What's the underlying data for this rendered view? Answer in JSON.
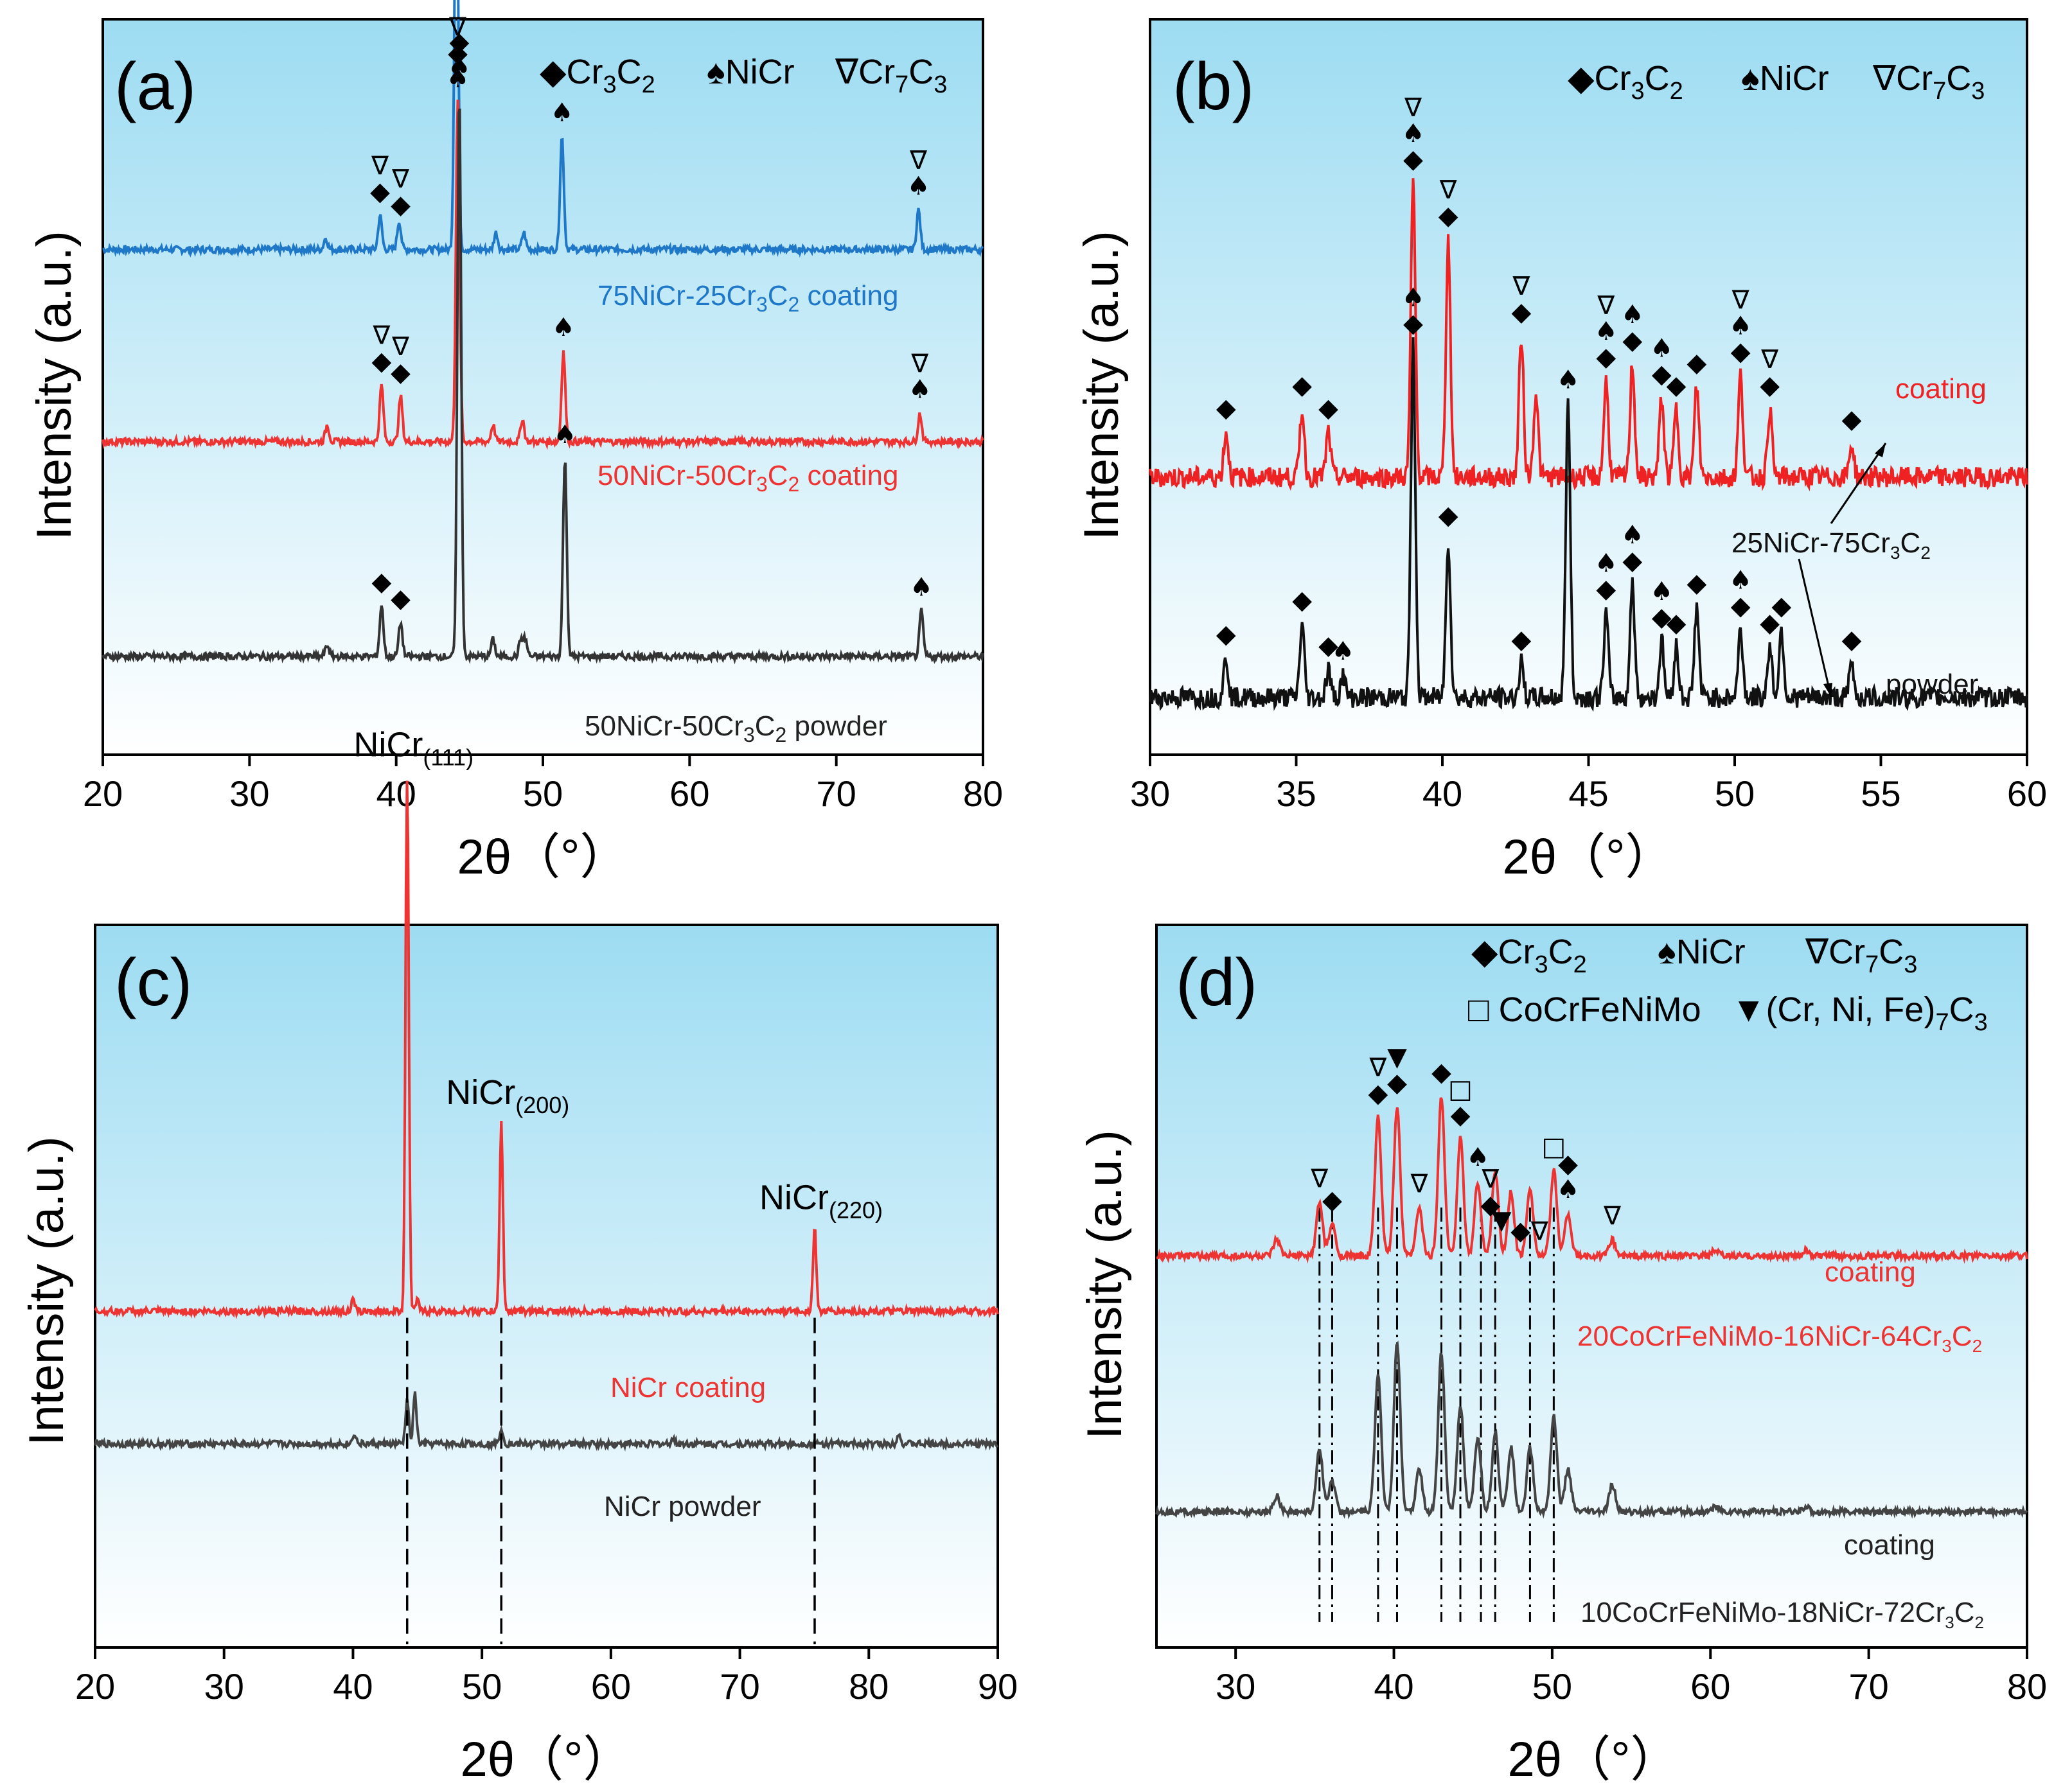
{
  "chart_data": [
    {
      "type": "line",
      "panel": "(a)",
      "xlabel": "2θ（°）",
      "ylabel": "Intensity (a.u.)",
      "xlim": [
        20,
        80
      ],
      "xticks": [
        "20",
        "30",
        "40",
        "50",
        "60",
        "70",
        "80"
      ],
      "legend": [
        {
          "symbol": "diamond",
          "text": "Cr3C2"
        },
        {
          "symbol": "spade",
          "text": "NiCr"
        },
        {
          "symbol": "nabla",
          "text": "Cr7C3"
        }
      ],
      "series": [
        {
          "name": "75NiCr-25Cr3C2 coating",
          "color": "#1f77c8",
          "baseline": 0.82,
          "peaks": [
            [
              38.9,
              0.06
            ],
            [
              40.2,
              0.05
            ],
            [
              44.1,
              0.74
            ],
            [
              51.3,
              0.2
            ],
            [
              75.6,
              0.07
            ],
            [
              35.2,
              0.02
            ],
            [
              46.8,
              0.03
            ],
            [
              48.7,
              0.03
            ]
          ],
          "markers": [
            [
              38.9,
              "◆∇"
            ],
            [
              40.3,
              "◆∇"
            ],
            [
              44.1,
              "♠◆∇"
            ],
            [
              51.3,
              "♠"
            ],
            [
              75.6,
              "♠∇"
            ]
          ]
        },
        {
          "name": "50NiCr-50Cr3C2 coating",
          "color": "#ee3333",
          "baseline": 0.48,
          "peaks": [
            [
              39.0,
              0.1
            ],
            [
              40.3,
              0.08
            ],
            [
              44.2,
              0.6
            ],
            [
              51.4,
              0.16
            ],
            [
              75.7,
              0.05
            ],
            [
              35.3,
              0.03
            ],
            [
              46.6,
              0.03
            ],
            [
              48.6,
              0.04
            ]
          ],
          "markers": [
            [
              39.0,
              "◆∇"
            ],
            [
              40.3,
              "◆∇"
            ],
            [
              44.2,
              "♠◆∇"
            ],
            [
              51.4,
              "♠"
            ],
            [
              75.7,
              "♠∇"
            ]
          ]
        },
        {
          "name": "50NiCr-50Cr3C2 powder",
          "color": "#333333",
          "baseline": 0.1,
          "peaks": [
            [
              39.0,
              0.09
            ],
            [
              40.3,
              0.06
            ],
            [
              44.3,
              1.0
            ],
            [
              51.5,
              0.35
            ],
            [
              75.8,
              0.08
            ],
            [
              35.3,
              0.02
            ],
            [
              46.6,
              0.03
            ],
            [
              48.5,
              0.03
            ],
            [
              48.8,
              0.03
            ]
          ],
          "markers": [
            [
              39.0,
              "◆"
            ],
            [
              40.3,
              "◆"
            ],
            [
              44.3,
              "♠◆"
            ],
            [
              51.5,
              "♠"
            ],
            [
              75.8,
              "♠"
            ]
          ]
        }
      ]
    },
    {
      "type": "line",
      "panel": "(b)",
      "xlabel": "2θ（°）",
      "ylabel": "Intensity (a.u.)",
      "xlim": [
        30,
        60
      ],
      "xticks": [
        "30",
        "35",
        "40",
        "45",
        "50",
        "55",
        "60"
      ],
      "legend": [
        {
          "symbol": "diamond",
          "text": "Cr3C2"
        },
        {
          "symbol": "spade",
          "text": "NiCr"
        },
        {
          "symbol": "nabla",
          "text": "Cr7C3"
        }
      ],
      "annotation": "25NiCr-75Cr3C2",
      "series": [
        {
          "name": "coating",
          "color": "#ee2222",
          "baseline": 0.44,
          "peaks": [
            [
              32.6,
              0.08
            ],
            [
              35.2,
              0.12
            ],
            [
              36.1,
              0.08
            ],
            [
              39.0,
              0.52
            ],
            [
              40.2,
              0.42
            ],
            [
              42.7,
              0.25
            ],
            [
              43.2,
              0.15
            ],
            [
              45.6,
              0.17
            ],
            [
              46.5,
              0.2
            ],
            [
              47.5,
              0.14
            ],
            [
              48.0,
              0.12
            ],
            [
              48.7,
              0.16
            ],
            [
              50.2,
              0.18
            ],
            [
              51.2,
              0.12
            ],
            [
              54.0,
              0.06
            ]
          ],
          "markers": [
            [
              32.6,
              "◆"
            ],
            [
              35.2,
              "◆"
            ],
            [
              36.1,
              "◆"
            ],
            [
              39.0,
              "◆♠∇"
            ],
            [
              40.2,
              "◆∇"
            ],
            [
              42.7,
              "◆∇"
            ],
            [
              45.6,
              "◆♠∇"
            ],
            [
              46.5,
              "◆♠"
            ],
            [
              47.5,
              "◆♠"
            ],
            [
              48.0,
              "◆"
            ],
            [
              48.7,
              "◆"
            ],
            [
              50.2,
              "◆♠∇"
            ],
            [
              51.2,
              "◆∇"
            ],
            [
              54.0,
              "◆"
            ]
          ]
        },
        {
          "name": "powder",
          "color": "#111111",
          "baseline": 0.05,
          "peaks": [
            [
              32.6,
              0.07
            ],
            [
              35.2,
              0.13
            ],
            [
              36.1,
              0.05
            ],
            [
              36.6,
              0.04
            ],
            [
              39.0,
              0.62
            ],
            [
              40.2,
              0.28
            ],
            [
              42.7,
              0.06
            ],
            [
              44.3,
              0.52
            ],
            [
              45.6,
              0.15
            ],
            [
              46.5,
              0.2
            ],
            [
              47.5,
              0.1
            ],
            [
              48.0,
              0.09
            ],
            [
              48.7,
              0.16
            ],
            [
              50.2,
              0.12
            ],
            [
              51.2,
              0.09
            ],
            [
              51.6,
              0.12
            ],
            [
              54.0,
              0.06
            ]
          ],
          "markers": [
            [
              32.6,
              "◆"
            ],
            [
              35.2,
              "◆"
            ],
            [
              36.1,
              "◆"
            ],
            [
              36.6,
              "♠"
            ],
            [
              39.0,
              "◆♠"
            ],
            [
              40.2,
              "◆"
            ],
            [
              42.7,
              "◆"
            ],
            [
              44.3,
              "♠"
            ],
            [
              45.6,
              "◆♠"
            ],
            [
              46.5,
              "◆♠"
            ],
            [
              47.5,
              "◆♠"
            ],
            [
              48.0,
              "◆"
            ],
            [
              48.7,
              "◆"
            ],
            [
              50.2,
              "◆♠"
            ],
            [
              51.2,
              "◆"
            ],
            [
              51.6,
              "◆"
            ],
            [
              54.0,
              "◆"
            ]
          ]
        }
      ]
    },
    {
      "type": "line",
      "panel": "(c)",
      "xlabel": "2θ（°）",
      "ylabel": "Intensity (a.u.)",
      "xlim": [
        20,
        90
      ],
      "xticks": [
        "20",
        "30",
        "40",
        "50",
        "60",
        "70",
        "80",
        "90"
      ],
      "peak_labels": [
        {
          "x": 44.2,
          "text": "NiCr(111)"
        },
        {
          "x": 51.5,
          "text": "NiCr(200)"
        },
        {
          "x": 75.8,
          "text": "NiCr(220)"
        }
      ],
      "series": [
        {
          "name": "NiCr coating",
          "color": "#ee3333",
          "baseline": 0.44,
          "peaks": [
            [
              44.2,
              0.97
            ],
            [
              51.5,
              0.34
            ],
            [
              75.8,
              0.15
            ],
            [
              40.0,
              0.02
            ],
            [
              45.0,
              0.02
            ]
          ]
        },
        {
          "name": "NiCr powder",
          "color": "#444444",
          "baseline": 0.2,
          "peaks": [
            [
              44.2,
              0.08
            ],
            [
              44.8,
              0.09
            ],
            [
              51.5,
              0.03
            ],
            [
              40.1,
              0.02
            ],
            [
              82.3,
              0.02
            ],
            [
              64.8,
              0.01
            ]
          ]
        }
      ]
    },
    {
      "type": "line",
      "panel": "(d)",
      "xlabel": "2θ（°）",
      "ylabel": "Intensity (a.u.)",
      "xlim": [
        25,
        80
      ],
      "xticks": [
        "30",
        "40",
        "50",
        "60",
        "70",
        "80"
      ],
      "legend": [
        {
          "symbol": "diamond",
          "text": "Cr3C2"
        },
        {
          "symbol": "spade",
          "text": "NiCr"
        },
        {
          "symbol": "nabla",
          "text": "Cr7C3"
        },
        {
          "symbol": "square",
          "text": "CoCrFeNiMo"
        },
        {
          "symbol": "filled-nabla",
          "text": "(Cr, Ni, Fe)7C3"
        }
      ],
      "series": [
        {
          "name": "coating",
          "label2": "20CoCrFeNiMo-16NiCr-64Cr3C2",
          "color": "#ee3333",
          "baseline": 0.62,
          "peaks": [
            [
              32.6,
              0.03
            ],
            [
              35.3,
              0.1
            ],
            [
              36.1,
              0.06
            ],
            [
              39.0,
              0.26
            ],
            [
              40.2,
              0.28
            ],
            [
              41.6,
              0.09
            ],
            [
              43.0,
              0.3
            ],
            [
              44.2,
              0.22
            ],
            [
              45.3,
              0.14
            ],
            [
              46.4,
              0.16
            ],
            [
              47.4,
              0.12
            ],
            [
              48.6,
              0.13
            ],
            [
              50.1,
              0.16
            ],
            [
              51.0,
              0.08
            ],
            [
              53.8,
              0.03
            ],
            [
              60.3,
              0.01
            ],
            [
              66.0,
              0.01
            ]
          ],
          "markers": [
            [
              35.3,
              "∇"
            ],
            [
              36.1,
              "◆"
            ],
            [
              39.0,
              "◆∇"
            ],
            [
              40.2,
              "◆▼"
            ],
            [
              41.6,
              "∇"
            ],
            [
              43.0,
              "◆"
            ],
            [
              44.2,
              "◆□"
            ],
            [
              45.3,
              "♠"
            ],
            [
              46.1,
              "◆∇"
            ],
            [
              46.8,
              "▼"
            ],
            [
              48.0,
              "◆"
            ],
            [
              49.2,
              "∇"
            ],
            [
              50.1,
              "□"
            ],
            [
              51.0,
              "♠◆"
            ],
            [
              53.8,
              "∇"
            ]
          ]
        },
        {
          "name": "coating",
          "label2": "10CoCrFeNiMo-18NiCr-72Cr3C2",
          "color": "#444444",
          "baseline": 0.14,
          "peaks": [
            [
              32.6,
              0.03
            ],
            [
              35.3,
              0.12
            ],
            [
              36.1,
              0.06
            ],
            [
              39.0,
              0.26
            ],
            [
              40.2,
              0.32
            ],
            [
              41.6,
              0.08
            ],
            [
              43.0,
              0.3
            ],
            [
              44.2,
              0.2
            ],
            [
              45.3,
              0.14
            ],
            [
              46.4,
              0.15
            ],
            [
              47.4,
              0.12
            ],
            [
              48.6,
              0.12
            ],
            [
              50.1,
              0.18
            ],
            [
              51.0,
              0.08
            ],
            [
              53.8,
              0.05
            ],
            [
              60.3,
              0.01
            ],
            [
              66.0,
              0.01
            ]
          ]
        }
      ],
      "dashlines": [
        35.3,
        36.1,
        39.0,
        40.2,
        43.0,
        44.2,
        45.5,
        46.4,
        48.6,
        50.1
      ]
    }
  ]
}
